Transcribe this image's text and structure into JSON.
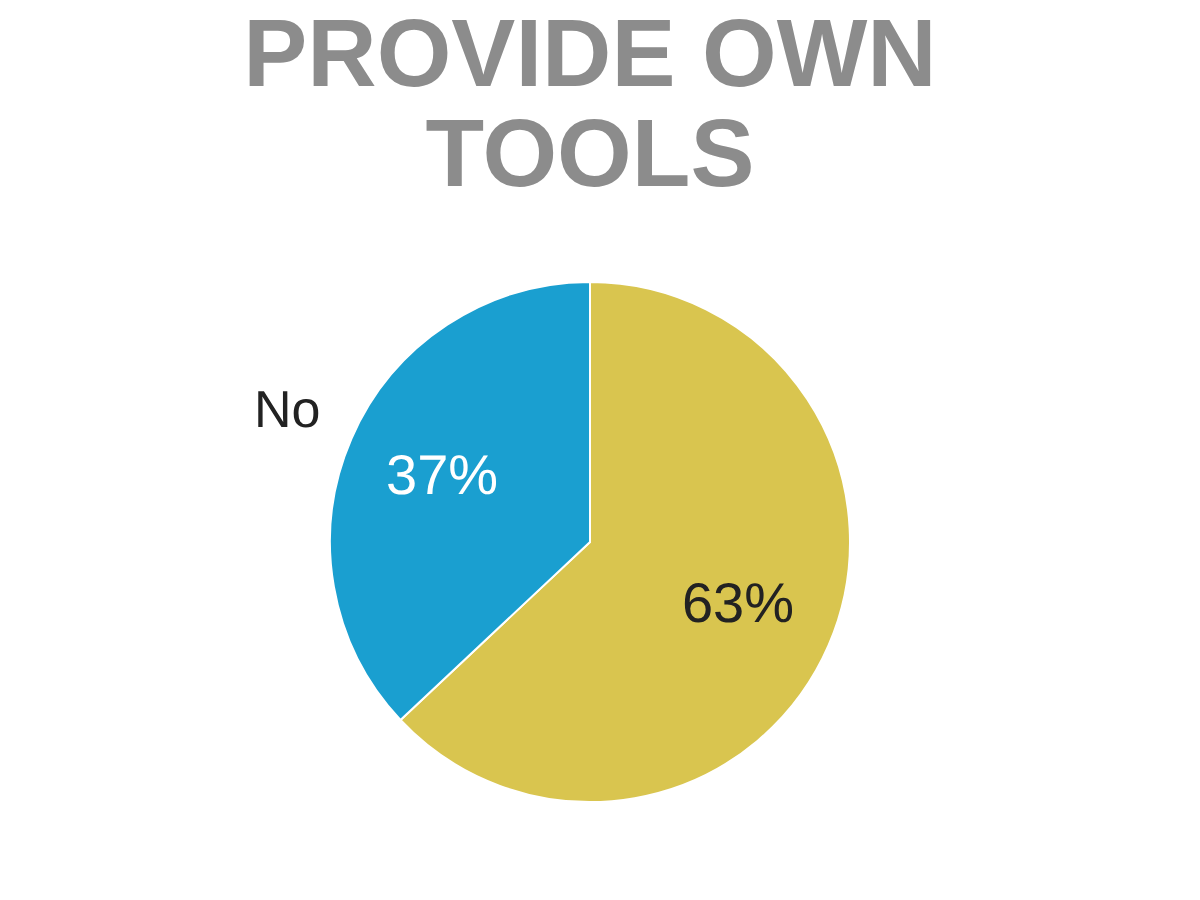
{
  "chart_data": {
    "type": "pie",
    "title": "PROVIDE OWN\nTOOLS",
    "categories": [
      null,
      "No"
    ],
    "values": [
      63,
      37
    ],
    "colors": [
      "#d9c54f",
      "#1a9fd0"
    ],
    "value_labels": [
      "63%",
      "37%"
    ],
    "legend": false
  }
}
